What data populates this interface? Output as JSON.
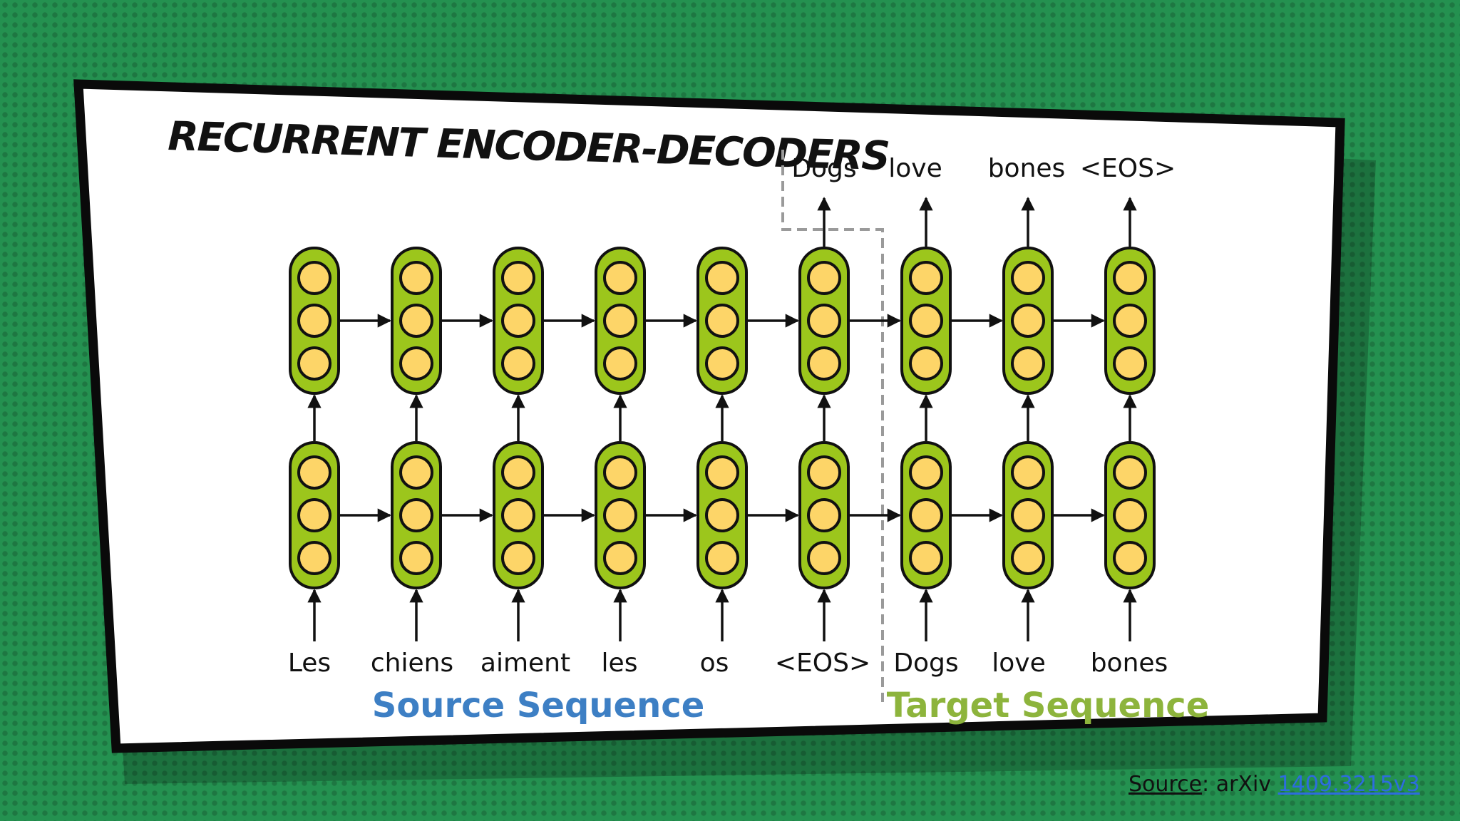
{
  "title": "RECURRENT ENCODER-DECODERS",
  "input_tokens": [
    "Les",
    "chiens",
    "aiment",
    "les",
    "os",
    "<EOS>",
    "Dogs",
    "love",
    "bones"
  ],
  "output_tokens": [
    "Dogs",
    "love",
    "bones",
    "<EOS>"
  ],
  "source_sequence_label": "Source Sequence",
  "target_sequence_label": "Target Sequence",
  "source_note": {
    "prefix": "Source",
    "middle": ": arXiv ",
    "link": "1409.3215v3"
  },
  "colors": {
    "background": "#249150",
    "cell_fill": "#9cc61c",
    "unit_fill": "#fdd568",
    "source_label": "#3d7fc4",
    "target_label": "#8db43c",
    "link": "#2d6cdf"
  }
}
